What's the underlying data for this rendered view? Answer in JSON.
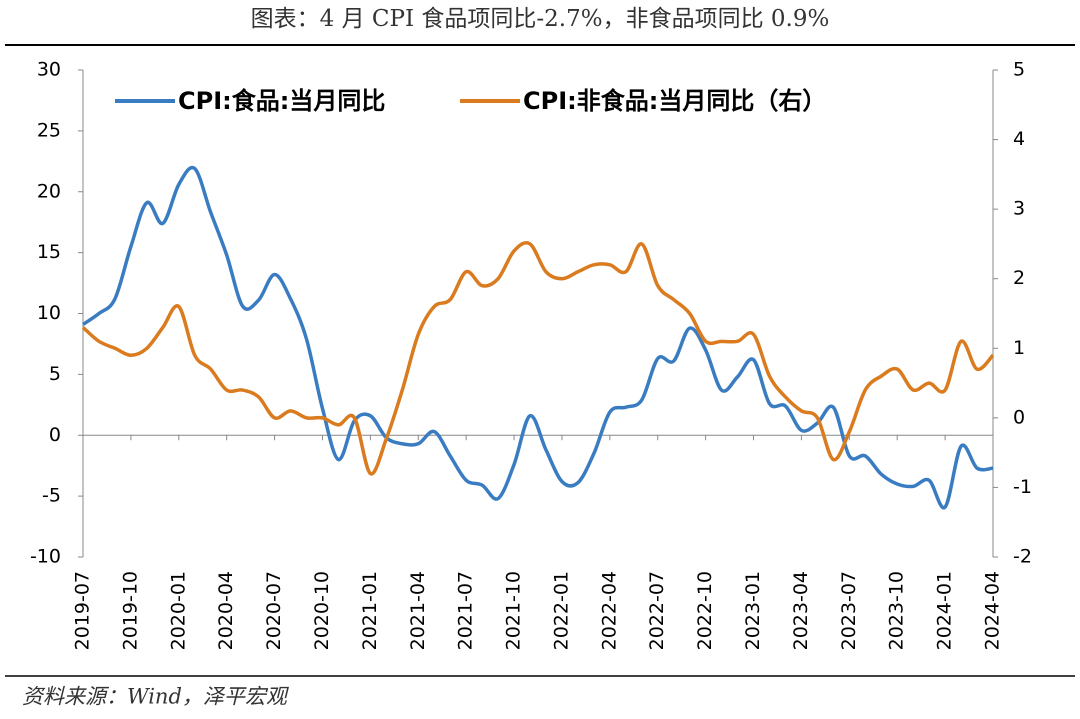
{
  "chart_data": {
    "type": "line",
    "title": "图表：4 月 CPI 食品项同比-2.7%，非食品项同比 0.9%",
    "source": "资料来源：Wind，泽平宏观",
    "categories": [
      "2019-07",
      null,
      null,
      "2019-10",
      null,
      null,
      "2020-01",
      null,
      null,
      "2020-04",
      null,
      null,
      "2020-07",
      null,
      null,
      "2020-10",
      null,
      null,
      "2021-01",
      null,
      null,
      "2021-04",
      null,
      null,
      "2021-07",
      null,
      null,
      "2021-10",
      null,
      null,
      "2022-01",
      null,
      null,
      "2022-04",
      null,
      null,
      "2022-07",
      null,
      null,
      "2022-10",
      null,
      null,
      "2023-01",
      null,
      null,
      "2023-04",
      null,
      null,
      "2023-07",
      null,
      null,
      "2023-10",
      null,
      null,
      "2024-01",
      null,
      null,
      "2024-04"
    ],
    "series": [
      {
        "name": "CPI:食品:当月同比",
        "color": "#3a7cc1",
        "values": [
          9.1,
          10.0,
          11.2,
          15.5,
          19.1,
          17.4,
          20.6,
          21.9,
          18.3,
          14.8,
          10.6,
          11.1,
          13.2,
          11.2,
          7.9,
          2.2,
          -2.0,
          1.2,
          1.6,
          -0.2,
          -0.7,
          -0.7,
          0.3,
          -1.7,
          -3.7,
          -4.1,
          -5.2,
          -2.4,
          1.6,
          -1.2,
          -3.8,
          -3.9,
          -1.5,
          1.9,
          2.3,
          2.9,
          6.3,
          6.1,
          8.8,
          7.0,
          3.7,
          4.8,
          6.2,
          2.6,
          2.4,
          0.4,
          1.0,
          2.3,
          -1.7,
          -1.7,
          -3.2,
          -4.0,
          -4.2,
          -3.7,
          -5.9,
          -0.9,
          -2.7,
          -2.7
        ]
      },
      {
        "name": "CPI:非食品:当月同比（右）",
        "color": "#d97b1e",
        "axis": "y2",
        "values": [
          1.3,
          1.1,
          1.0,
          0.9,
          1.0,
          1.3,
          1.6,
          0.9,
          0.7,
          0.4,
          0.4,
          0.3,
          0.0,
          0.1,
          0.0,
          0.0,
          -0.1,
          0.0,
          -0.8,
          -0.3,
          0.4,
          1.2,
          1.6,
          1.7,
          2.1,
          1.9,
          2.0,
          2.4,
          2.5,
          2.1,
          2.0,
          2.1,
          2.2,
          2.2,
          2.1,
          2.5,
          1.9,
          1.7,
          1.5,
          1.1,
          1.1,
          1.1,
          1.2,
          0.6,
          0.3,
          0.1,
          0.0,
          -0.6,
          -0.2,
          0.4,
          0.6,
          0.7,
          0.4,
          0.5,
          0.4,
          1.1,
          0.7,
          0.9
        ]
      }
    ],
    "ylim": [
      -10,
      30
    ],
    "yticks": [
      -10,
      -5,
      0,
      5,
      10,
      15,
      20,
      25,
      30
    ],
    "y2lim": [
      -2,
      5
    ],
    "y2ticks": [
      -2,
      -1,
      0,
      1,
      2,
      3,
      4,
      5
    ],
    "legend": "top"
  }
}
